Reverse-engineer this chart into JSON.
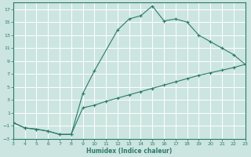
{
  "xlabel": "Humidex (Indice chaleur)",
  "bg_color": "#cce5e0",
  "grid_color": "#b0d8d0",
  "line_color": "#2a7a6a",
  "xlim": [
    3,
    23
  ],
  "ylim": [
    -3,
    18
  ],
  "xticks": [
    3,
    4,
    5,
    6,
    7,
    8,
    9,
    10,
    11,
    12,
    13,
    14,
    15,
    16,
    17,
    18,
    19,
    20,
    21,
    22,
    23
  ],
  "yticks": [
    -3,
    -1,
    1,
    3,
    5,
    7,
    9,
    11,
    13,
    15,
    17
  ],
  "curve1_x": [
    3,
    4,
    5,
    6,
    7,
    8,
    9,
    10,
    12,
    13,
    14,
    15,
    16,
    17,
    18,
    19,
    20,
    21,
    22,
    23
  ],
  "curve1_y": [
    -0.5,
    -1.3,
    -1.5,
    -1.8,
    -2.3,
    -2.3,
    4.0,
    7.5,
    13.8,
    15.5,
    16.0,
    17.5,
    15.2,
    15.5,
    15.0,
    13.0,
    12.0,
    11.0,
    10.0,
    8.5
  ],
  "curve2_x": [
    3,
    4,
    5,
    6,
    7,
    8,
    9,
    10,
    11,
    12,
    13,
    14,
    15,
    16,
    17,
    18,
    19,
    20,
    21,
    22,
    23
  ],
  "curve2_y": [
    -0.5,
    -1.3,
    -1.5,
    -1.8,
    -2.3,
    -2.3,
    1.8,
    2.2,
    2.8,
    3.3,
    3.8,
    4.3,
    4.8,
    5.3,
    5.8,
    6.3,
    6.8,
    7.2,
    7.6,
    8.0,
    8.5
  ]
}
